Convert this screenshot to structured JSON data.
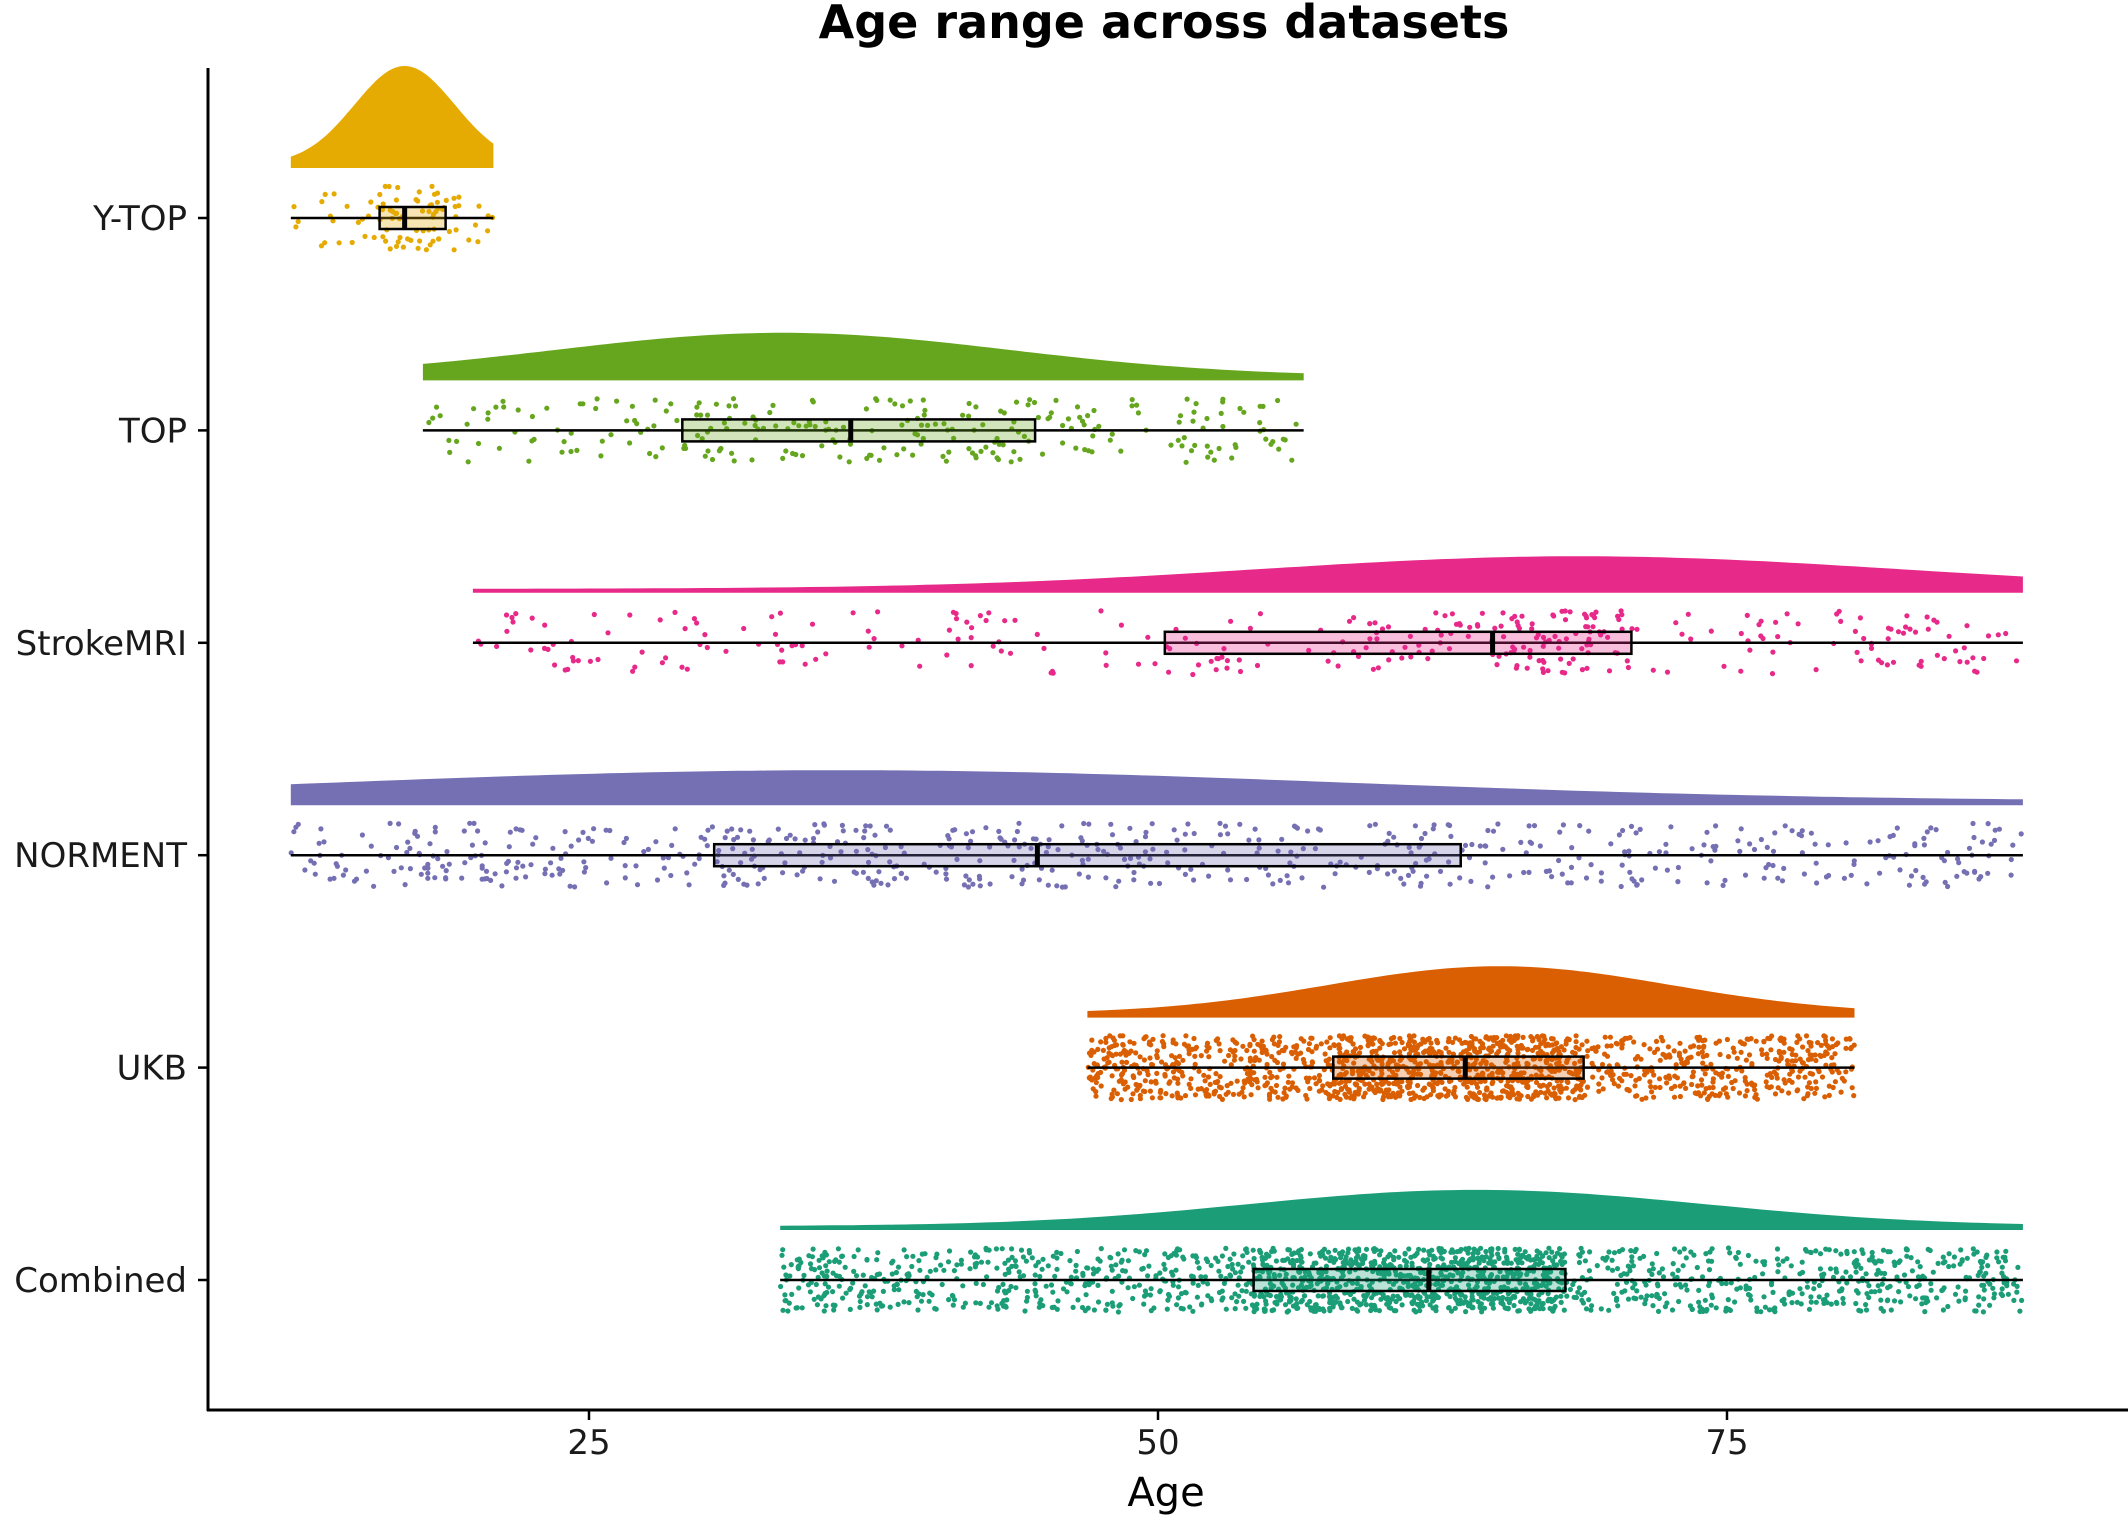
{
  "chart_data": {
    "type": "raincloud",
    "title": "Age range across datasets",
    "xlabel": "Age",
    "ylabel": "",
    "xlim": [
      7,
      91
    ],
    "x_ticks": [
      25,
      50,
      75
    ],
    "x_tick_labels": [
      "25",
      "50",
      "75"
    ],
    "grid": false,
    "legend": "none",
    "series": [
      {
        "name": "Y-TOP",
        "color": "#E6AB02",
        "min": 11.9,
        "q1": 15.8,
        "median": 16.9,
        "q3": 18.7,
        "max": 20.8,
        "n_points": 90,
        "density_mode": 16.9,
        "density_sd": 2.2
      },
      {
        "name": "TOP",
        "color": "#66A61E",
        "min": 17.7,
        "q1": 29.1,
        "median": 36.5,
        "q3": 44.6,
        "max": 56.4,
        "n_points": 260,
        "density_mode": 33.5,
        "density_sd": 10.0
      },
      {
        "name": "StrokeMRI",
        "color": "#E7298A",
        "min": 19.9,
        "q1": 50.3,
        "median": 64.7,
        "q3": 70.8,
        "max": 88.0,
        "n_points": 330,
        "density_mode": 68.5,
        "density_sd": 14.0
      },
      {
        "name": "NORMENT",
        "color": "#7570B3",
        "min": 11.9,
        "q1": 30.5,
        "median": 44.7,
        "q3": 63.3,
        "max": 88.0,
        "n_points": 620,
        "density_mode": 36.0,
        "density_sd": 22.0
      },
      {
        "name": "UKB",
        "color": "#D95F02",
        "min": 46.9,
        "q1": 57.7,
        "median": 63.5,
        "q3": 68.7,
        "max": 80.6,
        "n_points": 1500,
        "density_mode": 65.0,
        "density_sd": 7.5
      },
      {
        "name": "Combined",
        "color": "#1B9E77",
        "min": 33.4,
        "q1": 54.2,
        "median": 61.9,
        "q3": 67.9,
        "max": 88.0,
        "n_points": 1800,
        "density_mode": 64.0,
        "density_sd": 10.0
      }
    ]
  }
}
